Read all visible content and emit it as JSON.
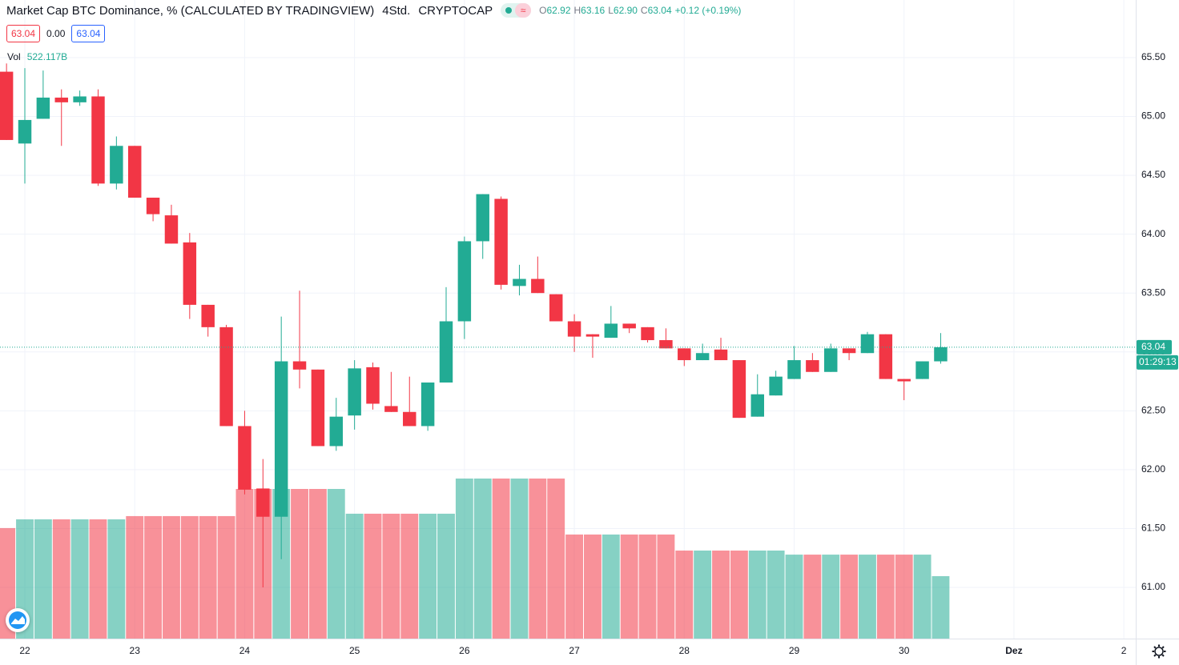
{
  "header": {
    "title": "Market Cap BTC Dominance, % (CALCULATED BY TRADINGVIEW)",
    "interval": "4Std.",
    "exchange": "CRYPTOCAP",
    "ohlc_legend": [
      {
        "key": "O",
        "value": "62.92"
      },
      {
        "key": "H",
        "value": "63.16"
      },
      {
        "key": "L",
        "value": "62.90"
      },
      {
        "key": "C",
        "value": "63.04"
      }
    ],
    "change": "+0.12 (+0.19%)",
    "bid": "63.04",
    "spread": "0.00",
    "ask": "63.04",
    "vol_label": "Vol",
    "vol_value": "522.117B"
  },
  "price_axis": {
    "last_price": "63.04",
    "countdown": "01:29:13"
  },
  "chart_data": {
    "type": "candlestick",
    "x": [
      -1,
      0,
      1,
      2,
      3,
      4,
      5,
      6,
      7,
      8,
      9,
      10,
      11,
      12,
      13,
      14,
      15,
      16,
      17,
      18,
      19,
      20,
      21,
      22,
      23,
      24,
      25,
      26,
      27,
      28,
      29,
      30,
      31,
      32,
      33,
      34,
      35,
      36,
      37,
      38,
      39,
      40,
      41,
      42,
      43,
      44,
      45,
      46,
      47,
      48,
      49,
      50
    ],
    "open": [
      65.38,
      64.77,
      64.98,
      65.16,
      65.12,
      65.17,
      64.43,
      64.75,
      64.31,
      64.16,
      63.93,
      63.4,
      63.21,
      62.37,
      61.84,
      61.6,
      62.92,
      62.85,
      62.2,
      62.46,
      62.87,
      62.54,
      62.49,
      62.37,
      62.74,
      63.26,
      63.94,
      64.3,
      63.56,
      63.62,
      63.49,
      63.26,
      63.15,
      63.12,
      63.24,
      63.21,
      63.1,
      63.03,
      62.93,
      63.02,
      62.93,
      62.45,
      62.63,
      62.77,
      62.93,
      62.83,
      63.03,
      62.99,
      63.15,
      62.77,
      62.77,
      62.92
    ],
    "high": [
      65.45,
      65.41,
      65.39,
      65.23,
      65.22,
      65.23,
      64.83,
      64.75,
      64.31,
      64.25,
      64.01,
      63.4,
      63.23,
      62.5,
      62.09,
      63.3,
      63.52,
      62.85,
      62.61,
      62.93,
      62.91,
      62.83,
      62.79,
      62.74,
      63.55,
      63.98,
      64.34,
      64.32,
      63.74,
      63.81,
      63.49,
      63.32,
      63.15,
      63.39,
      63.24,
      63.21,
      63.2,
      63.03,
      63.07,
      63.12,
      62.93,
      62.81,
      62.84,
      63.05,
      62.99,
      63.07,
      63.03,
      63.17,
      63.15,
      62.77,
      62.92,
      63.16
    ],
    "low": [
      64.8,
      64.43,
      64.98,
      64.75,
      65.09,
      64.41,
      64.38,
      64.31,
      64.11,
      63.92,
      63.28,
      63.13,
      62.37,
      61.79,
      61.0,
      61.24,
      62.69,
      62.2,
      62.16,
      62.34,
      62.51,
      62.49,
      62.37,
      62.33,
      62.74,
      63.11,
      63.79,
      63.53,
      63.48,
      63.5,
      63.26,
      63.0,
      62.95,
      63.12,
      63.16,
      63.08,
      63.03,
      62.88,
      62.93,
      62.93,
      62.44,
      62.45,
      62.63,
      62.77,
      62.83,
      62.83,
      62.93,
      62.99,
      62.77,
      62.59,
      62.77,
      62.9
    ],
    "close": [
      64.8,
      64.97,
      65.16,
      65.12,
      65.17,
      64.43,
      64.75,
      64.31,
      64.17,
      63.92,
      63.4,
      63.21,
      62.37,
      61.83,
      61.6,
      62.92,
      62.85,
      62.2,
      62.45,
      62.86,
      62.56,
      62.49,
      62.37,
      62.74,
      63.26,
      63.94,
      64.34,
      63.57,
      63.62,
      63.5,
      63.26,
      63.13,
      63.13,
      63.24,
      63.2,
      63.1,
      63.03,
      62.93,
      62.99,
      62.93,
      62.44,
      62.64,
      62.79,
      62.93,
      62.83,
      63.03,
      62.99,
      63.15,
      62.77,
      62.75,
      62.92,
      63.04
    ],
    "volume": [
      924,
      997,
      997,
      997,
      997,
      997,
      997,
      1024,
      1024,
      1024,
      1024,
      1024,
      1024,
      1251,
      1251,
      1251,
      1251,
      1251,
      1251,
      1044,
      1044,
      1044,
      1044,
      1044,
      1044,
      1338,
      1338,
      1338,
      1338,
      1338,
      1338,
      870,
      870,
      870,
      870,
      870,
      870,
      736,
      736,
      736,
      736,
      736,
      736,
      702,
      702,
      702,
      702,
      702,
      702,
      702,
      702,
      522.117
    ],
    "up_color": "#22ab94",
    "down_color": "#f23645",
    "xlim": [
      -1.356,
      60.65
    ],
    "xticks": [
      {
        "value": 0,
        "label": "22"
      },
      {
        "value": 6,
        "label": "23"
      },
      {
        "value": 12,
        "label": "24"
      },
      {
        "value": 18,
        "label": "25"
      },
      {
        "value": 24,
        "label": "26"
      },
      {
        "value": 30,
        "label": "27"
      },
      {
        "value": 36,
        "label": "28"
      },
      {
        "value": 42,
        "label": "29"
      },
      {
        "value": 48,
        "label": "30"
      },
      {
        "value": 54,
        "label": "Dez"
      },
      {
        "value": 60,
        "label": "2"
      }
    ],
    "ylim": [
      60.565,
      65.989
    ],
    "yticks": [
      {
        "value": 61,
        "label": "61.00"
      },
      {
        "value": 61.5,
        "label": "61.50"
      },
      {
        "value": 62,
        "label": "62.00"
      },
      {
        "value": 62.5,
        "label": "62.50"
      },
      {
        "value": 63,
        "label": "63.00"
      },
      {
        "value": 63.5,
        "label": "63.50"
      },
      {
        "value": 64,
        "label": "64.00"
      },
      {
        "value": 64.5,
        "label": "64.50"
      },
      {
        "value": 65,
        "label": "65.00"
      },
      {
        "value": 65.5,
        "label": "65.50"
      }
    ],
    "grid": true
  }
}
